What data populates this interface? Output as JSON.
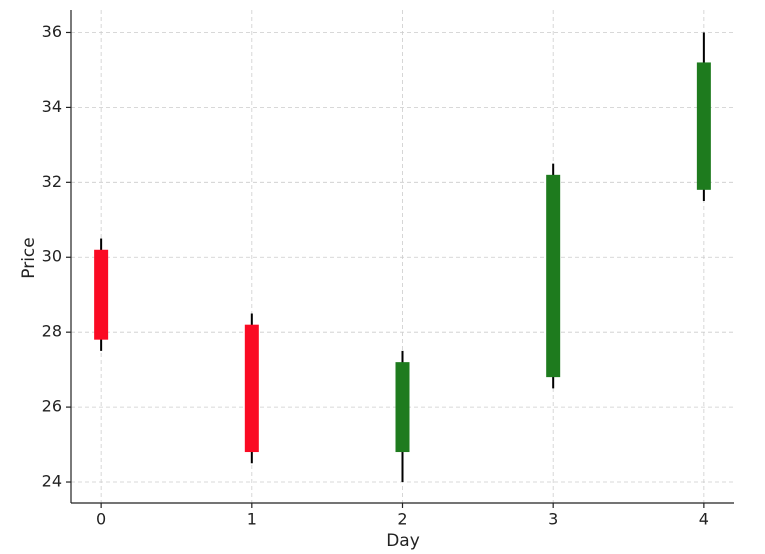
{
  "chart_data": {
    "type": "candlestick",
    "x_label": "Day",
    "y_label": "Price",
    "x": [
      0,
      1,
      2,
      3,
      4
    ],
    "open": [
      30.2,
      28.2,
      24.8,
      26.8,
      31.8
    ],
    "high": [
      30.5,
      28.5,
      27.5,
      32.5,
      36
    ],
    "low": [
      27.5,
      24.5,
      24,
      26.5,
      31.5
    ],
    "close": [
      27.8,
      24.8,
      27.2,
      32.2,
      35.2
    ],
    "up_color": "#1e7b1e",
    "down_color": "#fa0a23",
    "xlim": [
      -0.2,
      4.2
    ],
    "xticks": [
      0,
      1,
      2,
      3,
      4
    ],
    "ylim": [
      23.44,
      36.6
    ],
    "yticks": [
      24,
      26,
      28,
      30,
      32,
      34,
      36
    ],
    "grid": true
  }
}
